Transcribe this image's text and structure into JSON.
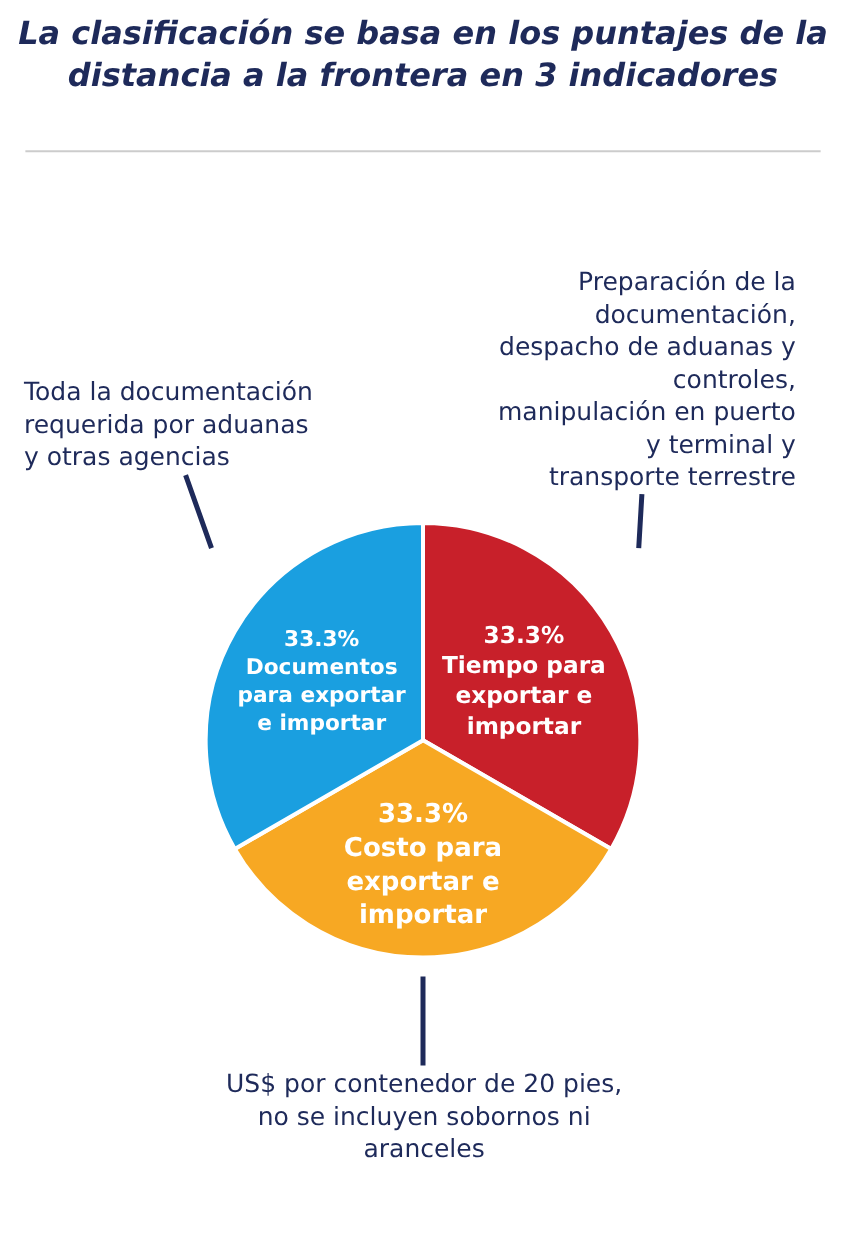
{
  "chart_data": {
    "type": "pie",
    "title": "La clasificación se basa en los puntajes de la distancia a la frontera en 3 indicadores",
    "categories": [
      "Tiempo para exportar e importar",
      "Costo para exportar e importar",
      "Documentos para exportar e importar"
    ],
    "values": [
      33.3,
      33.3,
      33.3
    ],
    "value_labels": [
      "33.3%",
      "33.3%",
      "33.3%"
    ],
    "colors": [
      "#c8202a",
      "#f7a823",
      "#1a9fe0"
    ],
    "annotations": [
      "Preparación de la documentación, despacho de aduanas y controles, manipulación en puerto y terminal y transporte terrestre",
      "US$ por contenedor de 20 pies, no se incluyen sobornos ni aranceles",
      "Toda la documentación requerida por aduanas y otras agencias"
    ],
    "legend": false
  }
}
